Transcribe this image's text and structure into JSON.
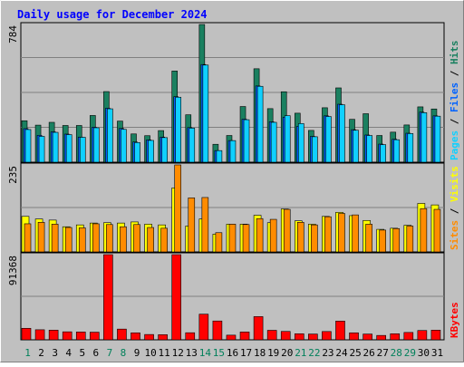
{
  "chart_data": {
    "type": "bar",
    "title": "Daily usage for December 2024",
    "days": [
      "1",
      "2",
      "3",
      "4",
      "5",
      "6",
      "7",
      "8",
      "9",
      "10",
      "11",
      "12",
      "13",
      "14",
      "15",
      "16",
      "17",
      "18",
      "19",
      "20",
      "21",
      "22",
      "23",
      "24",
      "25",
      "26",
      "27",
      "28",
      "29",
      "30",
      "31"
    ],
    "weekend_days": [
      "1",
      "7",
      "8",
      "14",
      "15",
      "21",
      "22",
      "28",
      "29"
    ],
    "panels": [
      {
        "id": "hits",
        "max_label": "784",
        "ymax": 784,
        "legend": [
          "Pages",
          "Files",
          "Hits"
        ],
        "series": [
          {
            "name": "Hits",
            "color": "#1a8060",
            "values": [
              236,
              211,
              227,
              209,
              209,
              266,
              402,
              234,
              161,
              151,
              180,
              519,
              270,
              784,
              102,
              152,
              317,
              532,
              305,
              401,
              279,
              181,
              310,
              423,
              244,
              276,
              152,
              171,
              212,
              315,
              303
            ]
          },
          {
            "name": "Files",
            "color": "#0062ff",
            "values": [
              191,
              153,
              173,
              160,
              143,
              199,
              307,
              192,
              115,
              127,
              143,
              373,
              197,
              556,
              66,
              123,
              245,
              434,
              230,
              256,
              204,
              147,
              264,
              330,
              185,
              155,
              103,
              131,
              165,
              285,
              264
            ]
          },
          {
            "name": "Pages",
            "color": "#10d0ff",
            "values": [
              186,
              147,
              170,
              157,
              142,
              196,
              304,
              187,
              112,
              124,
              140,
              370,
              194,
              553,
              66,
              123,
              242,
              432,
              227,
              265,
              220,
              145,
              260,
              327,
              182,
              152,
              100,
              128,
              163,
              282,
              262
            ]
          }
        ]
      },
      {
        "id": "visits",
        "max_label": "235",
        "ymax": 235,
        "legend": [
          "Sites",
          "Visits"
        ],
        "series": [
          {
            "name": "Visits",
            "color": "#ffff00",
            "values": [
              96,
              89,
              86,
              68,
              73,
              78,
              79,
              78,
              81,
              75,
              73,
              173,
              70,
              89,
              48,
              75,
              75,
              99,
              79,
              116,
              84,
              75,
              96,
              107,
              98,
              85,
              61,
              64,
              72,
              131,
              127
            ]
          },
          {
            "name": "Sites",
            "color": "#ff8c00",
            "values": [
              76,
              80,
              75,
              66,
              65,
              76,
              74,
              68,
              74,
              66,
              64,
              235,
              146,
              147,
              52,
              75,
              74,
              90,
              88,
              115,
              80,
              73,
              95,
              104,
              100,
              75,
              59,
              63,
              70,
              117,
              115
            ]
          }
        ]
      },
      {
        "id": "kbytes",
        "max_label": "91368",
        "ymax": 91368,
        "legend": [
          "KBytes"
        ],
        "series": [
          {
            "name": "KBytes",
            "color": "#ff0000",
            "values": [
              12350,
              10800,
              10400,
              8600,
              8400,
              8200,
              91368,
              11500,
              7500,
              5700,
              5500,
              91368,
              7600,
              27500,
              20200,
              5000,
              8400,
              24900,
              10200,
              9000,
              6500,
              6200,
              8900,
              20100,
              7500,
              6200,
              4700,
              6500,
              7900,
              10000,
              10400
            ]
          }
        ]
      }
    ]
  }
}
